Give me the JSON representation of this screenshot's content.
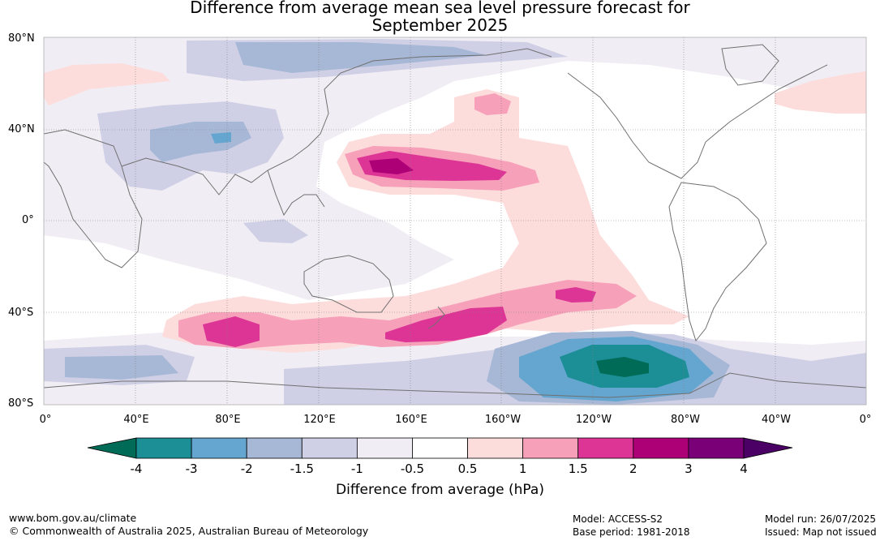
{
  "title_line1": "Difference from average mean sea level pressure forecast for",
  "title_line2": "September 2025",
  "lat_labels": [
    "80°N",
    "40°N",
    "0°",
    "40°S",
    "80°S"
  ],
  "lon_labels": [
    "0°",
    "40°E",
    "80°E",
    "120°E",
    "160°E",
    "160°W",
    "120°W",
    "80°W",
    "40°W",
    "0°"
  ],
  "colorbar": {
    "ticks": [
      "-4",
      "-3",
      "-2",
      "-1.5",
      "-1",
      "-0.5",
      "0.5",
      "1",
      "1.5",
      "2",
      "3",
      "4"
    ],
    "colors": [
      "#1b8e96",
      "#64a6d0",
      "#a7b7d6",
      "#cfd0e6",
      "#f1edf4",
      "#ffffff",
      "#fddcdc",
      "#f7a0b9",
      "#dd3596",
      "#ad0077",
      "#7a0077"
    ],
    "low_extend_color": "#006b56",
    "high_extend_color": "#4a0064",
    "label": "Difference from average (hPa)"
  },
  "footer": {
    "website": "www.bom.gov.au/climate",
    "copyright": "© Commonwealth of Australia 2025, Australian Bureau of Meteorology",
    "model": "Model: ACCESS-S2",
    "base_period": "Base period: 1981-2018",
    "model_run": "Model run: 26/07/2025",
    "issued": "Issued: Map not issued"
  }
}
